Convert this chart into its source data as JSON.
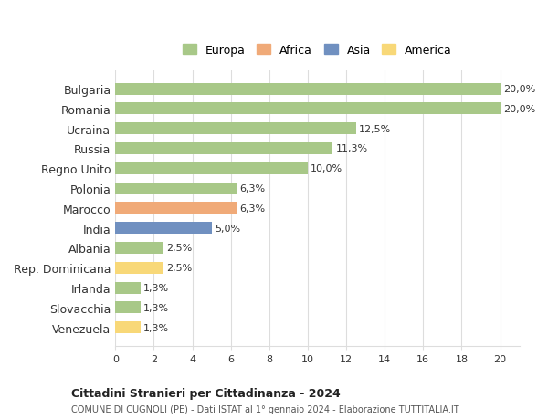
{
  "categories": [
    "Bulgaria",
    "Romania",
    "Ucraina",
    "Russia",
    "Regno Unito",
    "Polonia",
    "Marocco",
    "India",
    "Albania",
    "Rep. Dominicana",
    "Irlanda",
    "Slovacchia",
    "Venezuela"
  ],
  "values": [
    20.0,
    20.0,
    12.5,
    11.3,
    10.0,
    6.3,
    6.3,
    5.0,
    2.5,
    2.5,
    1.3,
    1.3,
    1.3
  ],
  "labels": [
    "20,0%",
    "20,0%",
    "12,5%",
    "11,3%",
    "10,0%",
    "6,3%",
    "6,3%",
    "5,0%",
    "2,5%",
    "2,5%",
    "1,3%",
    "1,3%",
    "1,3%"
  ],
  "colors": [
    "#a8c888",
    "#a8c888",
    "#a8c888",
    "#a8c888",
    "#a8c888",
    "#a8c888",
    "#f0aa78",
    "#7090c0",
    "#a8c888",
    "#f8d878",
    "#a8c888",
    "#a8c888",
    "#f8d878"
  ],
  "legend": [
    {
      "label": "Europa",
      "color": "#a8c888"
    },
    {
      "label": "Africa",
      "color": "#f0aa78"
    },
    {
      "label": "Asia",
      "color": "#7090c0"
    },
    {
      "label": "America",
      "color": "#f8d878"
    }
  ],
  "xlim": [
    0,
    21
  ],
  "xticks": [
    0,
    2,
    4,
    6,
    8,
    10,
    12,
    14,
    16,
    18,
    20
  ],
  "title1": "Cittadini Stranieri per Cittadinanza - 2024",
  "title2": "COMUNE DI CUGNOLI (PE) - Dati ISTAT al 1° gennaio 2024 - Elaborazione TUTTITALIA.IT",
  "background_color": "#ffffff",
  "grid_color": "#dddddd",
  "bar_height": 0.6
}
